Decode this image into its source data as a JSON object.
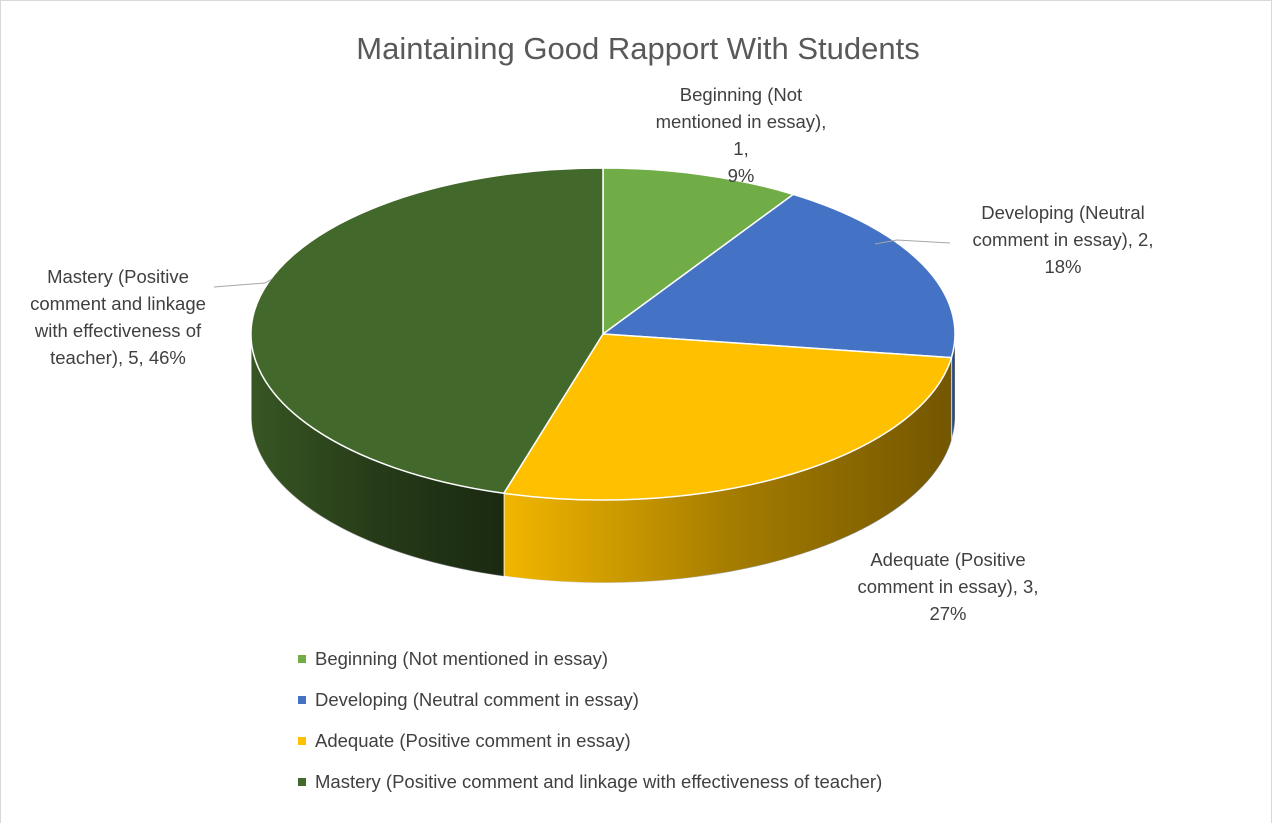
{
  "chart_data": {
    "type": "pie",
    "title": "Maintaining Good Rapport With Students",
    "categories": [
      "Beginning (Not mentioned in essay)",
      "Developing (Neutral comment in essay)",
      "Adequate (Positive comment in essay)",
      "Mastery (Positive comment and linkage with effectiveness of teacher)"
    ],
    "values": [
      1,
      2,
      3,
      5
    ],
    "percentages": [
      "9%",
      "18%",
      "27%",
      "46%"
    ],
    "colors": [
      "#70ad47",
      "#4472c4",
      "#ffc000",
      "#43682b"
    ],
    "legend_position": "bottom",
    "data_labels": [
      [
        "Beginning (Not",
        "mentioned in essay), 1,",
        "9%"
      ],
      [
        "Developing (Neutral",
        "comment in essay), 2,",
        "18%"
      ],
      [
        "Adequate (Positive",
        "comment in essay), 3,",
        "27%"
      ],
      [
        "Mastery (Positive",
        "comment and linkage",
        "with effectiveness of",
        "teacher), 5, 46%"
      ]
    ]
  }
}
